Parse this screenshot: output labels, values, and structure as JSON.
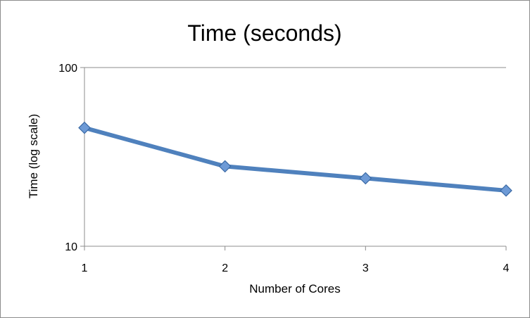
{
  "chart_data": {
    "type": "line",
    "title": "Time (seconds)",
    "xlabel": "Number of Cores",
    "ylabel": "Time (log scale)",
    "x": [
      1,
      2,
      3,
      4
    ],
    "series": [
      {
        "values": [
          46,
          28,
          24,
          20.5
        ]
      }
    ],
    "xlim": [
      1,
      4
    ],
    "ylim": [
      10,
      100
    ],
    "yscale": "log",
    "xticks": [
      "1",
      "2",
      "3",
      "4"
    ],
    "yticks": [
      "10",
      "100"
    ],
    "grid": "horizontal-major",
    "legend": "none",
    "colors": {
      "series": "#4f81bd",
      "marker_fill": "#6d9ad6",
      "marker_stroke": "#3b6aa5",
      "grid": "#8c8c8c",
      "axis": "#8c8c8c"
    }
  }
}
